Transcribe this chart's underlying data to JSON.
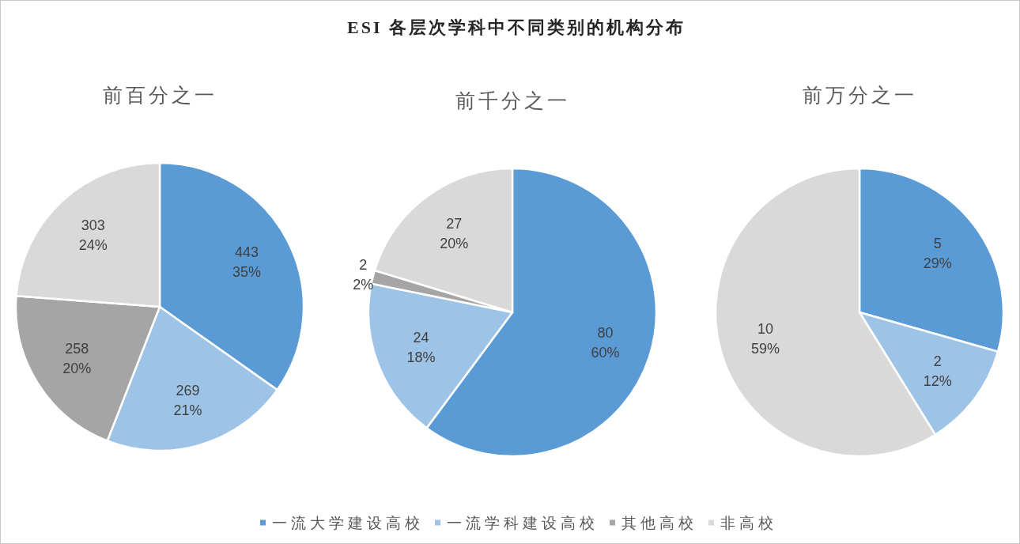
{
  "chart_data": [
    {
      "type": "pie",
      "title": "前百分之一",
      "categories": [
        null,
        null,
        null,
        null
      ],
      "values": [
        443,
        269,
        258,
        303
      ],
      "colors": [
        "#5b9bd5",
        "#9dc3e6",
        "#a5a5a5",
        "#d9d9d9"
      ],
      "value_labels": [
        "443\n35%",
        "269\n21%",
        "258\n20%",
        "303\n24%"
      ]
    },
    {
      "type": "pie",
      "title": "前千分之一",
      "annotations": [
        "ESI 各层次学科中不同类别的机构分布"
      ],
      "categories": [
        "一流大学建设高校",
        "一流学科建设高校",
        "其他高校",
        "非高校"
      ],
      "values": [
        80,
        24,
        2,
        27
      ],
      "colors": [
        "#5b9bd5",
        "#9dc3e6",
        "#a5a5a5",
        "#d9d9d9"
      ],
      "value_labels": [
        "80\n60%",
        "24\n18%",
        "2\n2%",
        "27\n20%"
      ],
      "legend": "bottom"
    },
    {
      "type": "pie",
      "title": "前万分之一",
      "categories": [
        null,
        null,
        null
      ],
      "values": [
        5,
        2,
        10
      ],
      "colors": [
        "#5b9bd5",
        "#9dc3e6",
        "#d9d9d9"
      ],
      "value_labels": [
        "5\n29%",
        "2\n12%",
        "10\n59%"
      ]
    }
  ]
}
